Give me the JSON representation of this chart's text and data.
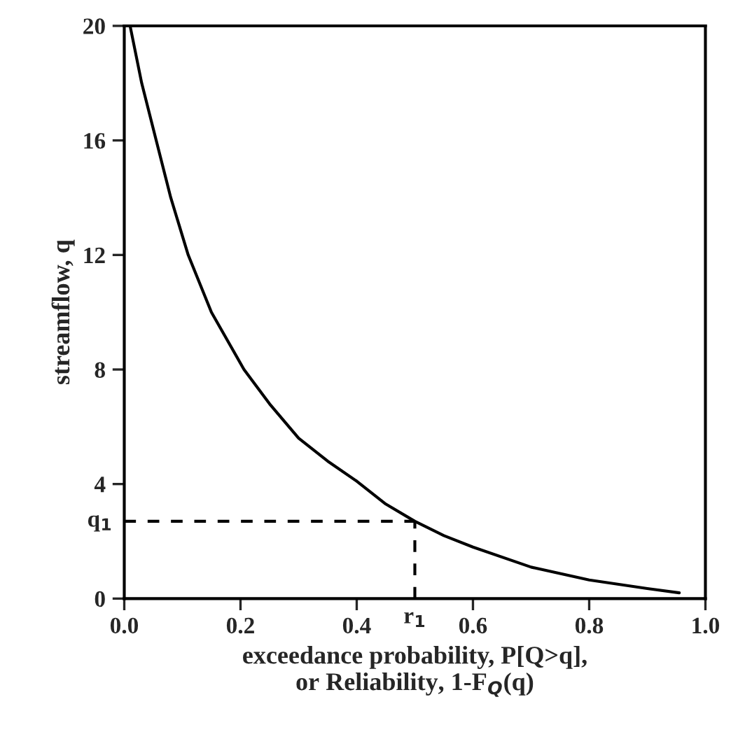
{
  "chart_data": {
    "type": "line",
    "xlabel": "exceedance probability, P[Q>q],\nor Reliability, 1-F$_{Q}$(q)",
    "ylabel": "streamflow, q",
    "x": [
      0.01,
      0.03,
      0.055,
      0.08,
      0.11,
      0.15,
      0.206,
      0.25,
      0.3,
      0.35,
      0.4,
      0.45,
      0.5,
      0.55,
      0.6,
      0.7,
      0.8,
      0.9,
      0.955
    ],
    "series": [
      {
        "color": "#000000",
        "values": [
          20,
          18,
          16,
          14,
          12,
          10,
          8,
          6.8,
          5.6,
          4.8,
          4.1,
          3.3,
          2.7,
          2.2,
          1.8,
          1.1,
          0.65,
          0.35,
          0.2
        ]
      }
    ],
    "xlim": [
      0,
      1
    ],
    "ylim": [
      0,
      20
    ],
    "xticks": [
      {
        "value": 0,
        "label": "0.0"
      },
      {
        "value": 0.2,
        "label": "0.2"
      },
      {
        "value": 0.4,
        "label": "0.4"
      },
      {
        "value": 0.6,
        "label": "0.6"
      },
      {
        "value": 0.8,
        "label": "0.8"
      },
      {
        "value": 1,
        "label": "1.0"
      }
    ],
    "yticks": [
      0,
      4,
      8,
      12,
      16,
      20
    ],
    "ref_lines": [
      {
        "axis": "y",
        "value": 2.7,
        "label": "q$_{1}$",
        "line_style": "dashed",
        "color": "#000000"
      },
      {
        "axis": "x",
        "value": 0.5,
        "label": "r$_{1}$",
        "line_style": "dashed",
        "color": "#000000"
      }
    ],
    "grid": false,
    "legend": false,
    "marker": "none",
    "line_style": "solid"
  }
}
